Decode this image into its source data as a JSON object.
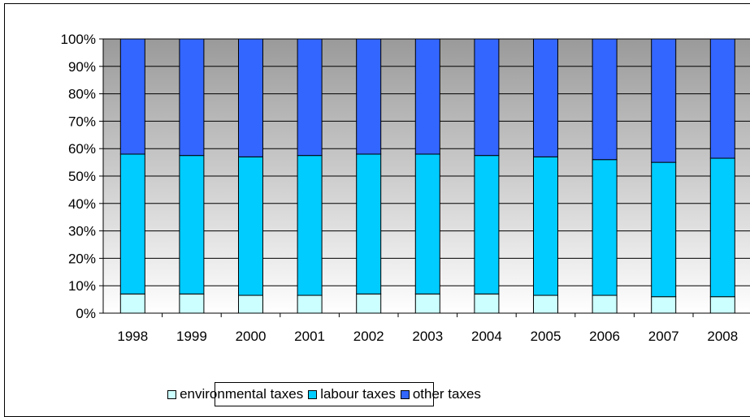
{
  "chart_data": {
    "type": "bar",
    "stacked": true,
    "categories": [
      "1998",
      "1999",
      "2000",
      "2001",
      "2002",
      "2003",
      "2004",
      "2005",
      "2006",
      "2007",
      "2008"
    ],
    "series": [
      {
        "name": "environmental taxes",
        "color": "#ccffff",
        "values": [
          7,
          7,
          6.5,
          6.5,
          7,
          7,
          7,
          6.5,
          6.5,
          6,
          6
        ]
      },
      {
        "name": "labour taxes",
        "color": "#00ccff",
        "values": [
          51,
          50.5,
          50.5,
          51,
          51,
          51,
          50.5,
          50.5,
          49.5,
          49,
          50.5
        ]
      },
      {
        "name": "other taxes",
        "color": "#3366ff",
        "values": [
          42,
          42.5,
          43,
          42.5,
          42,
          42,
          42.5,
          43,
          44,
          45,
          43.5
        ]
      }
    ],
    "y_ticks": [
      "0%",
      "10%",
      "20%",
      "30%",
      "40%",
      "50%",
      "60%",
      "70%",
      "80%",
      "90%",
      "100%"
    ],
    "ylim": [
      0,
      100
    ],
    "grid": true,
    "legend_position": "bottom",
    "title": "",
    "xlabel": "",
    "ylabel": ""
  }
}
